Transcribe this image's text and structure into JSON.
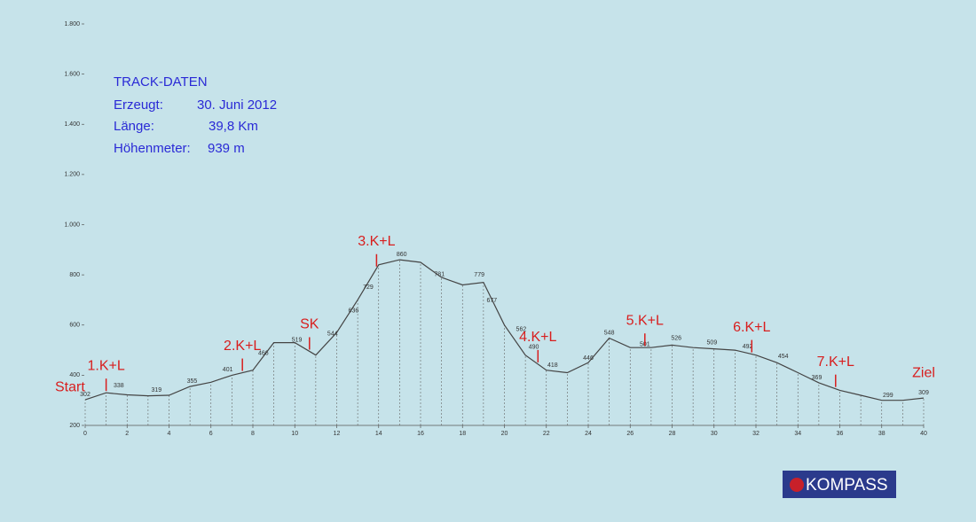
{
  "chart_data": {
    "type": "line",
    "x": [
      0,
      1,
      2,
      3,
      4,
      5,
      6,
      7,
      8,
      9,
      10,
      11,
      12,
      13,
      14,
      15,
      16,
      17,
      18,
      19,
      20,
      21,
      22,
      23,
      24,
      25,
      26,
      27,
      28,
      29,
      30,
      31,
      32,
      33,
      34,
      35,
      36,
      37,
      38,
      39,
      40
    ],
    "series": [
      {
        "color": "#444444",
        "values": [
          302,
          330,
          322,
          318,
          320,
          355,
          372,
          400,
          420,
          530,
          530,
          480,
          570,
          700,
          840,
          860,
          850,
          790,
          760,
          770,
          600,
          480,
          420,
          410,
          450,
          548,
          510,
          510,
          520,
          510,
          505,
          500,
          480,
          450,
          410,
          370,
          340,
          320,
          300,
          300,
          309
        ]
      }
    ],
    "point_labels": {
      "x": [
        0,
        1.6,
        3.4,
        5.1,
        6.8,
        8.5,
        10.1,
        11.8,
        12.8,
        13.5,
        15.1,
        16.9,
        18.8,
        19.4,
        20.8,
        21.4,
        22.3,
        24.0,
        25.0,
        26.7,
        28.2,
        29.9,
        31.6,
        33.3,
        34.9,
        38.3,
        40.0
      ],
      "values": [
        302,
        338,
        319,
        355,
        401,
        466,
        519,
        544,
        636,
        729,
        860,
        781,
        779,
        677,
        562,
        490,
        418,
        446,
        548,
        501,
        526,
        509,
        492,
        454,
        369,
        299,
        309
      ]
    },
    "annotations": [
      {
        "text": "Start",
        "x": 0
      },
      {
        "text": "1.K+L",
        "x": 1
      },
      {
        "text": "2.K+L",
        "x": 7.5
      },
      {
        "text": "SK",
        "x": 10.7
      },
      {
        "text": "3.K+L",
        "x": 13.9
      },
      {
        "text": "4.K+L",
        "x": 21.6
      },
      {
        "text": "5.K+L",
        "x": 26.7
      },
      {
        "text": "6.K+L",
        "x": 31.8
      },
      {
        "text": "7.K+L",
        "x": 35.8
      },
      {
        "text": "Ziel",
        "x": 40
      }
    ],
    "xlim": [
      0,
      40
    ],
    "xticks": [
      0,
      2,
      4,
      6,
      8,
      10,
      12,
      14,
      16,
      18,
      20,
      22,
      24,
      26,
      28,
      30,
      32,
      34,
      36,
      38,
      40
    ],
    "ylim": [
      200,
      1800
    ],
    "yticks": [
      200,
      400,
      600,
      800,
      {
        "value": 1000,
        "label": "1.000"
      },
      {
        "value": 1200,
        "label": "1.200"
      },
      {
        "value": 1400,
        "label": "1.400"
      },
      {
        "value": 1600,
        "label": "1.600"
      },
      {
        "value": 1800,
        "label": "1.800"
      }
    ],
    "annotation_color": "#d81e1e"
  },
  "track_data": {
    "title": "TRACK-DATEN",
    "rows": [
      [
        "Erzeugt:",
        "30. Juni 2012"
      ],
      [
        "Länge:",
        "39,8 Km"
      ],
      [
        "Höhenmeter:",
        "939 m"
      ]
    ]
  },
  "logo": "KOMPASS"
}
